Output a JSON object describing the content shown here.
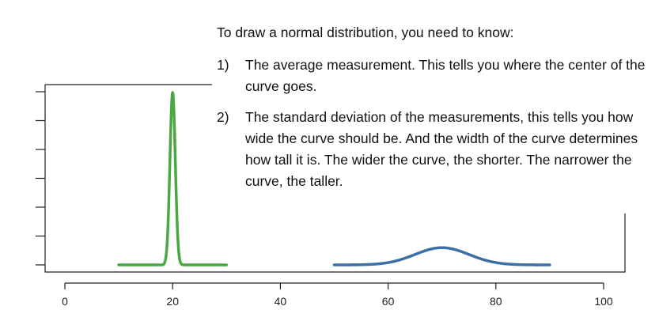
{
  "text": {
    "intro": "To draw a normal distribution, you need to know:",
    "points": [
      {
        "num": "1)",
        "body": "The average measurement. This tells you where the center of the curve goes."
      },
      {
        "num": "2)",
        "body": "The standard deviation of the measurements, this tells you how wide the curve should be. And the width of the curve determines how tall it is. The wider the curve, the shorter. The narrower the curve, the taller."
      }
    ]
  },
  "chart_data": {
    "type": "line",
    "xlim": [
      0,
      100
    ],
    "x_ticks": [
      0,
      20,
      40,
      60,
      80,
      100
    ],
    "y_tick_count": 7,
    "grid": false,
    "series": [
      {
        "mean": 20,
        "sd": 0.5,
        "x_range": [
          10,
          30
        ],
        "color": "#4aa843"
      },
      {
        "mean": 70,
        "sd": 5,
        "x_range": [
          50,
          90
        ],
        "color": "#3b6fa8"
      }
    ]
  }
}
